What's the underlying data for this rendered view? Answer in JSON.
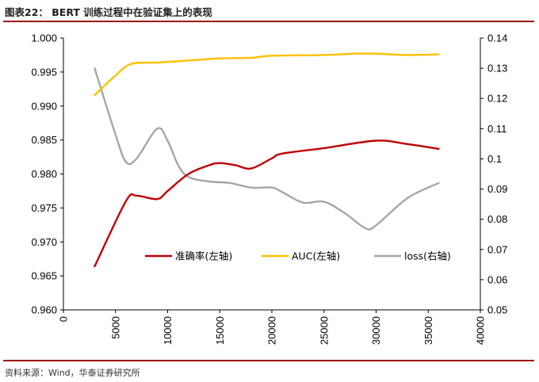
{
  "header": {
    "title": "图表22：  BERT 训练过程中在验证集上的表现"
  },
  "footer": {
    "source": "资料来源：Wind，华泰证券研究所"
  },
  "colors": {
    "frame": "#a01010",
    "accuracy": "#c00000",
    "auc": "#ffc000",
    "loss": "#a6a6a6"
  },
  "chart_data": {
    "type": "line",
    "title": "",
    "x_range": [
      0,
      40000
    ],
    "x_ticks": [
      "0",
      "5000",
      "10000",
      "15000",
      "20000",
      "25000",
      "30000",
      "35000",
      "40000"
    ],
    "y_left_range": [
      0.96,
      1.0
    ],
    "y_left_ticks": [
      "0.960",
      "0.965",
      "0.970",
      "0.975",
      "0.980",
      "0.985",
      "0.990",
      "0.995",
      "1.000"
    ],
    "y_right_range": [
      0.05,
      0.14
    ],
    "y_right_ticks": [
      "0.05",
      "0.06",
      "0.07",
      "0.08",
      "0.09",
      "0.1",
      "0.11",
      "0.12",
      "0.13",
      "0.14"
    ],
    "grid": false,
    "legend_position": "bottom-center (inside plot)",
    "series": [
      {
        "name": "准确率(左轴)",
        "axis": "left",
        "color": "#c00000",
        "points": [
          [
            3000,
            0.9664
          ],
          [
            6000,
            0.976
          ],
          [
            7000,
            0.9768
          ],
          [
            9000,
            0.9763
          ],
          [
            10000,
            0.9775
          ],
          [
            12000,
            0.98
          ],
          [
            14000,
            0.9813
          ],
          [
            15000,
            0.9816
          ],
          [
            16500,
            0.9813
          ],
          [
            18000,
            0.9808
          ],
          [
            20000,
            0.9823
          ],
          [
            21000,
            0.983
          ],
          [
            25000,
            0.9838
          ],
          [
            30000,
            0.9849
          ],
          [
            33000,
            0.9844
          ],
          [
            36000,
            0.9837
          ]
        ]
      },
      {
        "name": "AUC(左轴)",
        "axis": "left",
        "color": "#ffc000",
        "points": [
          [
            3000,
            0.9916
          ],
          [
            5000,
            0.9945
          ],
          [
            6500,
            0.9962
          ],
          [
            9000,
            0.9964
          ],
          [
            12000,
            0.9967
          ],
          [
            15000,
            0.997
          ],
          [
            18000,
            0.9971
          ],
          [
            20000,
            0.9974
          ],
          [
            25000,
            0.9975
          ],
          [
            28000,
            0.9977
          ],
          [
            30000,
            0.9977
          ],
          [
            33000,
            0.9975
          ],
          [
            36000,
            0.9976
          ]
        ]
      },
      {
        "name": "loss(右轴)",
        "axis": "right",
        "color": "#a6a6a6",
        "points": [
          [
            3000,
            0.13
          ],
          [
            5000,
            0.108
          ],
          [
            6000,
            0.099
          ],
          [
            7000,
            0.1
          ],
          [
            9000,
            0.11
          ],
          [
            10000,
            0.106
          ],
          [
            11000,
            0.098
          ],
          [
            12000,
            0.094
          ],
          [
            14000,
            0.0925
          ],
          [
            16000,
            0.092
          ],
          [
            18000,
            0.0905
          ],
          [
            20000,
            0.0905
          ],
          [
            21000,
            0.089
          ],
          [
            23000,
            0.0855
          ],
          [
            25000,
            0.0858
          ],
          [
            27000,
            0.082
          ],
          [
            29000,
            0.077
          ],
          [
            30000,
            0.078
          ],
          [
            33000,
            0.087
          ],
          [
            36000,
            0.092
          ]
        ]
      }
    ]
  }
}
